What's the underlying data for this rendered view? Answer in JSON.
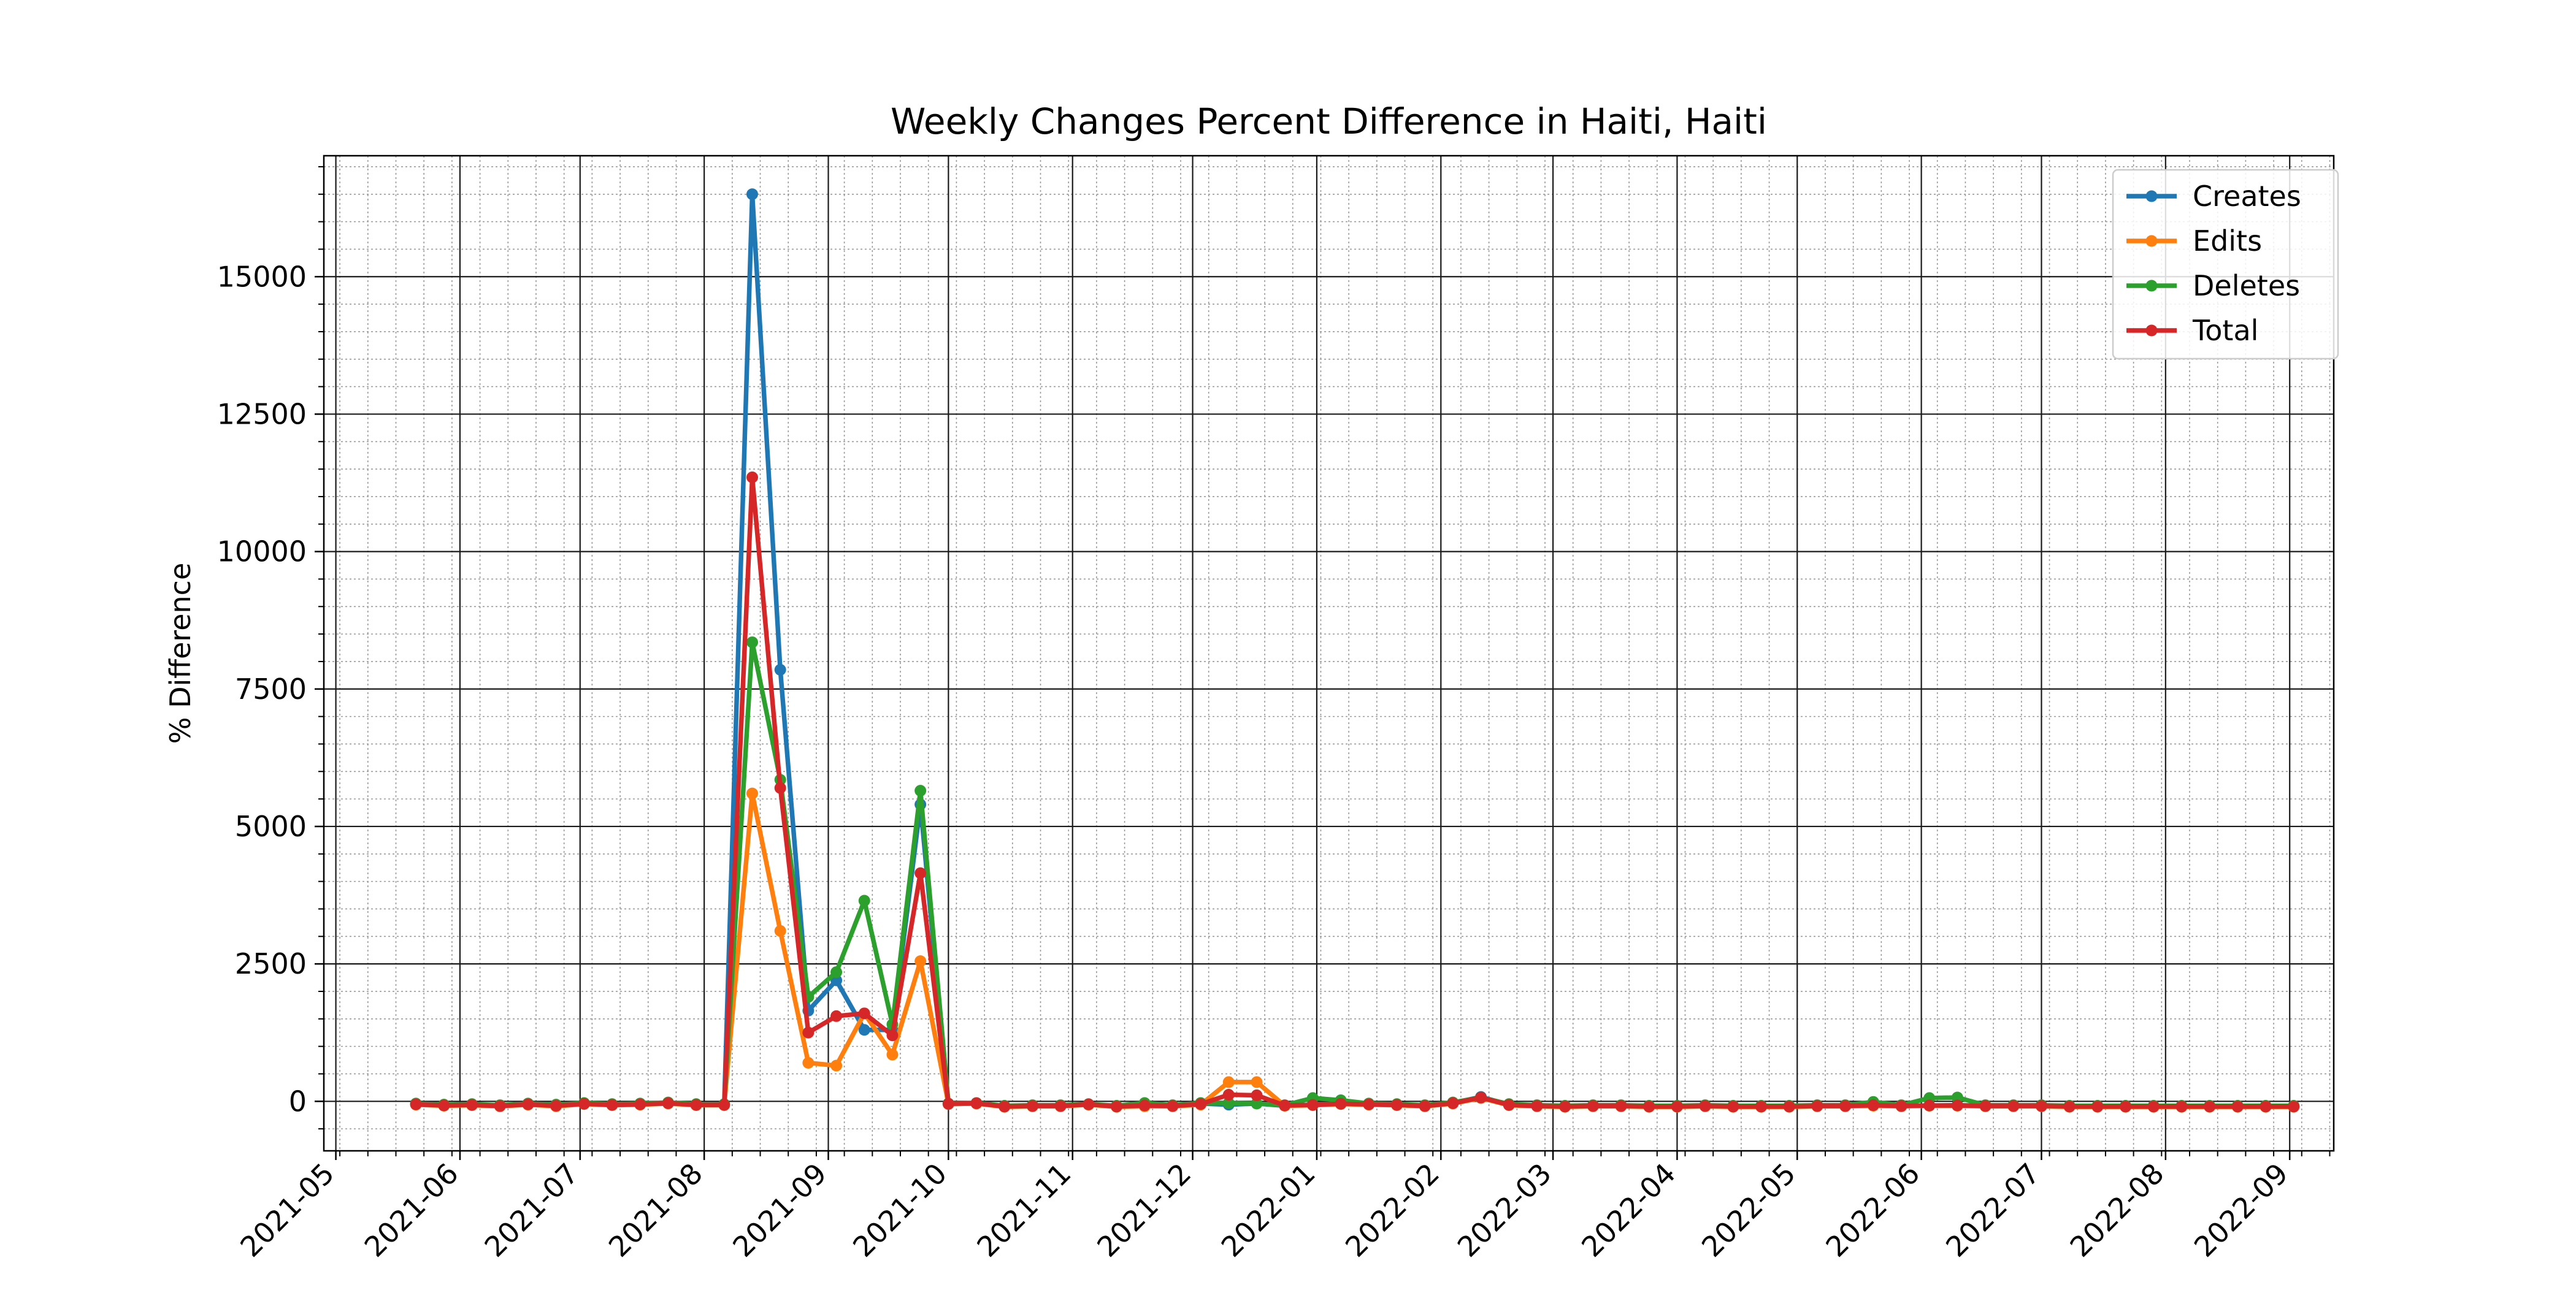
{
  "chart_data": {
    "type": "line",
    "title": "Weekly Changes Percent Difference in Haiti, Haiti",
    "xlabel": "",
    "ylabel": "% Difference",
    "x_axis_type": "date",
    "xlim": [
      "2021-04-28",
      "2022-09-12"
    ],
    "ylim": [
      -900,
      17200
    ],
    "grid": true,
    "minor_grid": true,
    "legend_position": "top-right",
    "x_ticks": [
      "2021-05",
      "2021-06",
      "2021-07",
      "2021-08",
      "2021-09",
      "2021-10",
      "2021-11",
      "2021-12",
      "2022-01",
      "2022-02",
      "2022-03",
      "2022-04",
      "2022-05",
      "2022-06",
      "2022-07",
      "2022-08",
      "2022-09"
    ],
    "y_ticks": [
      0,
      2500,
      5000,
      7500,
      10000,
      12500,
      15000
    ],
    "y_tick_labels": [
      "0",
      "2500",
      "5000",
      "7500",
      "10000",
      "12500",
      "15000"
    ],
    "x": [
      "2021-05-21",
      "2021-05-28",
      "2021-06-04",
      "2021-06-11",
      "2021-06-18",
      "2021-06-25",
      "2021-07-02",
      "2021-07-09",
      "2021-07-16",
      "2021-07-23",
      "2021-07-30",
      "2021-08-06",
      "2021-08-13",
      "2021-08-20",
      "2021-08-27",
      "2021-09-03",
      "2021-09-10",
      "2021-09-17",
      "2021-09-24",
      "2021-10-01",
      "2021-10-08",
      "2021-10-15",
      "2021-10-22",
      "2021-10-29",
      "2021-11-05",
      "2021-11-12",
      "2021-11-19",
      "2021-11-26",
      "2021-12-03",
      "2021-12-10",
      "2021-12-17",
      "2021-12-24",
      "2021-12-31",
      "2022-01-07",
      "2022-01-14",
      "2022-01-21",
      "2022-01-28",
      "2022-02-04",
      "2022-02-11",
      "2022-02-18",
      "2022-02-25",
      "2022-03-04",
      "2022-03-11",
      "2022-03-18",
      "2022-03-25",
      "2022-04-01",
      "2022-04-08",
      "2022-04-15",
      "2022-04-22",
      "2022-04-29",
      "2022-05-06",
      "2022-05-13",
      "2022-05-20",
      "2022-05-27",
      "2022-06-03",
      "2022-06-10",
      "2022-06-17",
      "2022-06-24",
      "2022-07-01",
      "2022-07-08",
      "2022-07-15",
      "2022-07-22",
      "2022-07-29",
      "2022-08-05",
      "2022-08-12",
      "2022-08-19",
      "2022-08-26",
      "2022-09-02"
    ],
    "series": [
      {
        "name": "Creates",
        "color": "#1f77b4",
        "values": [
          -50,
          -70,
          -60,
          -80,
          -50,
          -70,
          -40,
          -60,
          -50,
          -30,
          -60,
          -60,
          16500,
          7850,
          1650,
          2200,
          1300,
          1300,
          5400,
          -50,
          -40,
          -90,
          -80,
          -80,
          -60,
          -90,
          -70,
          -80,
          -40,
          -60,
          -40,
          -80,
          -60,
          -40,
          -50,
          -60,
          -80,
          -30,
          80,
          -60,
          -80,
          -90,
          -80,
          -80,
          -90,
          -90,
          -80,
          -90,
          -90,
          -90,
          -80,
          -80,
          -70,
          -80,
          -80,
          -70,
          -80,
          -80,
          -80,
          -90,
          -90,
          -90,
          -90,
          -90,
          -90,
          -90,
          -90,
          -90
        ]
      },
      {
        "name": "Edits",
        "color": "#ff7f0e",
        "values": [
          -60,
          -80,
          -70,
          -90,
          -60,
          -90,
          -50,
          -70,
          -60,
          -40,
          -70,
          -70,
          5600,
          3100,
          700,
          650,
          1600,
          850,
          2550,
          -50,
          -40,
          -100,
          -90,
          -90,
          -60,
          -100,
          -90,
          -90,
          -60,
          350,
          350,
          -80,
          -70,
          -50,
          -60,
          -70,
          -90,
          -40,
          60,
          -70,
          -90,
          -100,
          -90,
          -90,
          -100,
          -100,
          -90,
          -100,
          -100,
          -100,
          -90,
          -90,
          -80,
          -90,
          -80,
          -80,
          -90,
          -90,
          -90,
          -100,
          -100,
          -100,
          -100,
          -100,
          -100,
          -100,
          -100,
          -100
        ]
      },
      {
        "name": "Deletes",
        "color": "#2ca02c",
        "values": [
          -40,
          -60,
          -50,
          -70,
          -40,
          -60,
          -30,
          -50,
          -40,
          -20,
          -50,
          -50,
          8350,
          5850,
          1900,
          2350,
          3650,
          1400,
          5650,
          -40,
          -30,
          -80,
          -70,
          -70,
          -50,
          -80,
          -30,
          -70,
          -30,
          -30,
          -40,
          -70,
          60,
          20,
          -40,
          -50,
          -70,
          -20,
          70,
          -50,
          -70,
          -80,
          -70,
          -70,
          -80,
          -80,
          -70,
          -80,
          -80,
          -80,
          -70,
          -70,
          -10,
          -70,
          60,
          70,
          -70,
          -70,
          -70,
          -80,
          -80,
          -80,
          -80,
          -80,
          -80,
          -80,
          -80,
          -80
        ]
      },
      {
        "name": "Total",
        "color": "#d62728",
        "values": [
          -55,
          -75,
          -65,
          -85,
          -55,
          -80,
          -45,
          -65,
          -55,
          -35,
          -65,
          -65,
          11350,
          5700,
          1250,
          1550,
          1600,
          1200,
          4150,
          -45,
          -35,
          -95,
          -85,
          -85,
          -55,
          -95,
          -75,
          -85,
          -50,
          120,
          110,
          -75,
          -65,
          -45,
          -55,
          -65,
          -85,
          -35,
          70,
          -65,
          -85,
          -95,
          -85,
          -85,
          -95,
          -95,
          -85,
          -95,
          -95,
          -95,
          -85,
          -85,
          -70,
          -85,
          -75,
          -75,
          -85,
          -85,
          -85,
          -95,
          -95,
          -95,
          -95,
          -95,
          -95,
          -95,
          -95,
          -95
        ]
      }
    ]
  }
}
